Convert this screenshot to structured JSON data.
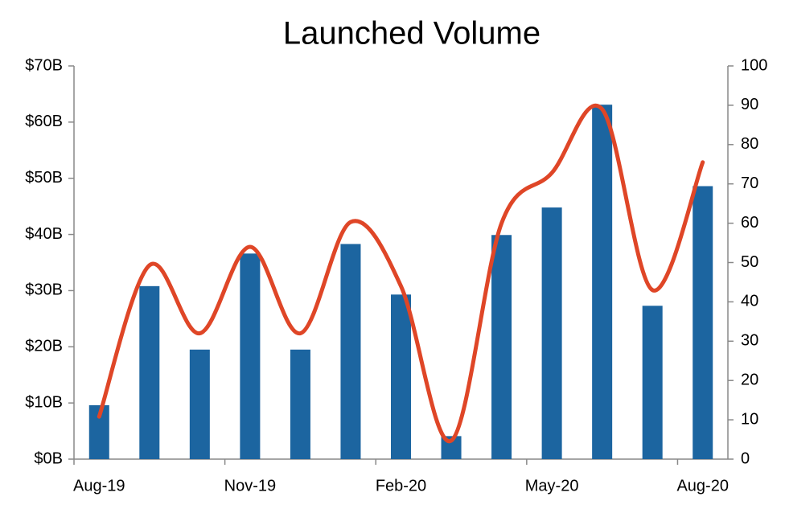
{
  "chart_data": {
    "type": "bar",
    "title": "Launched Volume",
    "categories": [
      "Aug-19",
      null,
      null,
      "Nov-19",
      null,
      null,
      "Feb-20",
      null,
      null,
      "May-20",
      null,
      null,
      "Aug-20"
    ],
    "series": [
      {
        "type": "bar",
        "color": "#1c65a0",
        "values": [
          9.6,
          30.8,
          19.5,
          36.6,
          19.5,
          38.3,
          29.3,
          4.1,
          39.9,
          44.8,
          63.1,
          27.3,
          48.6
        ]
      },
      {
        "type": "line",
        "axis": "y2",
        "color": "#df4627",
        "values": [
          10.8,
          49.3,
          32,
          54,
          32,
          60.3,
          44,
          4.7,
          60,
          72.8,
          89,
          43,
          75.5
        ]
      }
    ],
    "ylim": [
      0,
      70
    ],
    "yticks": [
      {
        "value": 0,
        "label": "$0B"
      },
      {
        "value": 10,
        "label": "$10B"
      },
      {
        "value": 20,
        "label": "$20B"
      },
      {
        "value": 30,
        "label": "$30B"
      },
      {
        "value": 40,
        "label": "$40B"
      },
      {
        "value": 50,
        "label": "$50B"
      },
      {
        "value": 60,
        "label": "$60B"
      },
      {
        "value": 70,
        "label": "$70B"
      }
    ],
    "y2lim": [
      0,
      100
    ],
    "y2ticks": [
      0,
      10,
      20,
      30,
      40,
      50,
      60,
      70,
      80,
      90,
      100
    ]
  }
}
